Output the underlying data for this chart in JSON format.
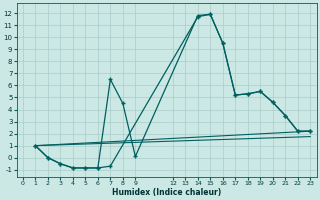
{
  "xlabel": "Humidex (Indice chaleur)",
  "bg_color": "#cce8e4",
  "grid_color": "#aaccca",
  "line_color": "#005f5f",
  "xlim": [
    -0.5,
    23.5
  ],
  "ylim": [
    -1.6,
    12.8
  ],
  "xticks": [
    0,
    1,
    2,
    3,
    4,
    5,
    6,
    7,
    8,
    9,
    12,
    13,
    14,
    15,
    16,
    17,
    18,
    19,
    20,
    21,
    22,
    23
  ],
  "yticks": [
    -1,
    0,
    1,
    2,
    3,
    4,
    5,
    6,
    7,
    8,
    9,
    10,
    11,
    12
  ],
  "curve1_x": [
    1,
    2,
    3,
    4,
    5,
    6,
    7,
    14,
    15,
    16,
    17,
    18,
    19,
    20,
    21,
    22,
    23
  ],
  "curve1_y": [
    1.0,
    0.0,
    -0.5,
    -0.85,
    -0.85,
    -0.85,
    -0.7,
    11.7,
    11.9,
    9.5,
    5.2,
    5.3,
    5.5,
    4.6,
    3.5,
    2.2,
    2.2
  ],
  "curve2_x": [
    1,
    2,
    3,
    4,
    5,
    6,
    7,
    8,
    9,
    14,
    15,
    16,
    17,
    18,
    19,
    20,
    21,
    22,
    23
  ],
  "curve2_y": [
    1.0,
    0.0,
    -0.5,
    -0.85,
    -0.85,
    -0.85,
    6.5,
    4.5,
    0.1,
    11.8,
    11.9,
    9.5,
    5.2,
    5.3,
    5.5,
    4.6,
    3.5,
    2.2,
    2.2
  ],
  "line1_x": [
    1,
    23
  ],
  "line1_y": [
    1.0,
    2.2
  ],
  "line2_x": [
    1,
    23
  ],
  "line2_y": [
    1.0,
    1.75
  ],
  "xtick_labels": [
    "0",
    "1",
    "2",
    "3",
    "4",
    "5",
    "6",
    "7",
    "8",
    "9",
    "12",
    "13",
    "14",
    "15",
    "16",
    "17",
    "18",
    "19",
    "20",
    "21",
    "22",
    "23"
  ]
}
